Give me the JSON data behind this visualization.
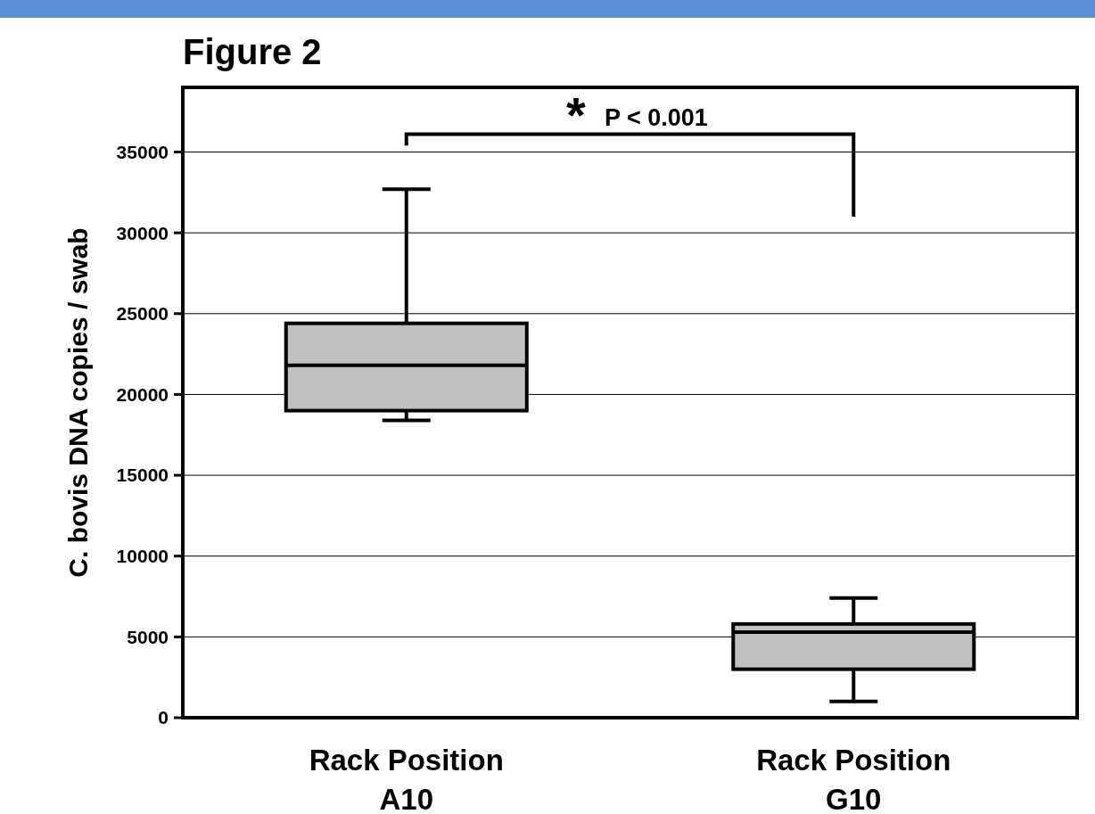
{
  "chart_data": {
    "type": "box",
    "title": "Figure 2",
    "ylabel": "C. bovis DNA copies / swab",
    "categories": [
      "Rack Position\nA10",
      "Rack Position\nG10"
    ],
    "boxes": [
      {
        "low": 18400,
        "q1": 19000,
        "median": 21800,
        "q3": 24400,
        "high": 32700
      },
      {
        "low": 1000,
        "q1": 3000,
        "median": 5300,
        "q3": 5800,
        "high": 7400
      }
    ],
    "color": "#c0c0c0",
    "ylim": [
      0,
      39000
    ],
    "yticks": [
      0,
      5000,
      10000,
      15000,
      20000,
      25000,
      30000,
      35000
    ],
    "grid": "y",
    "annotations": [
      "*",
      "P < 0.001"
    ]
  }
}
